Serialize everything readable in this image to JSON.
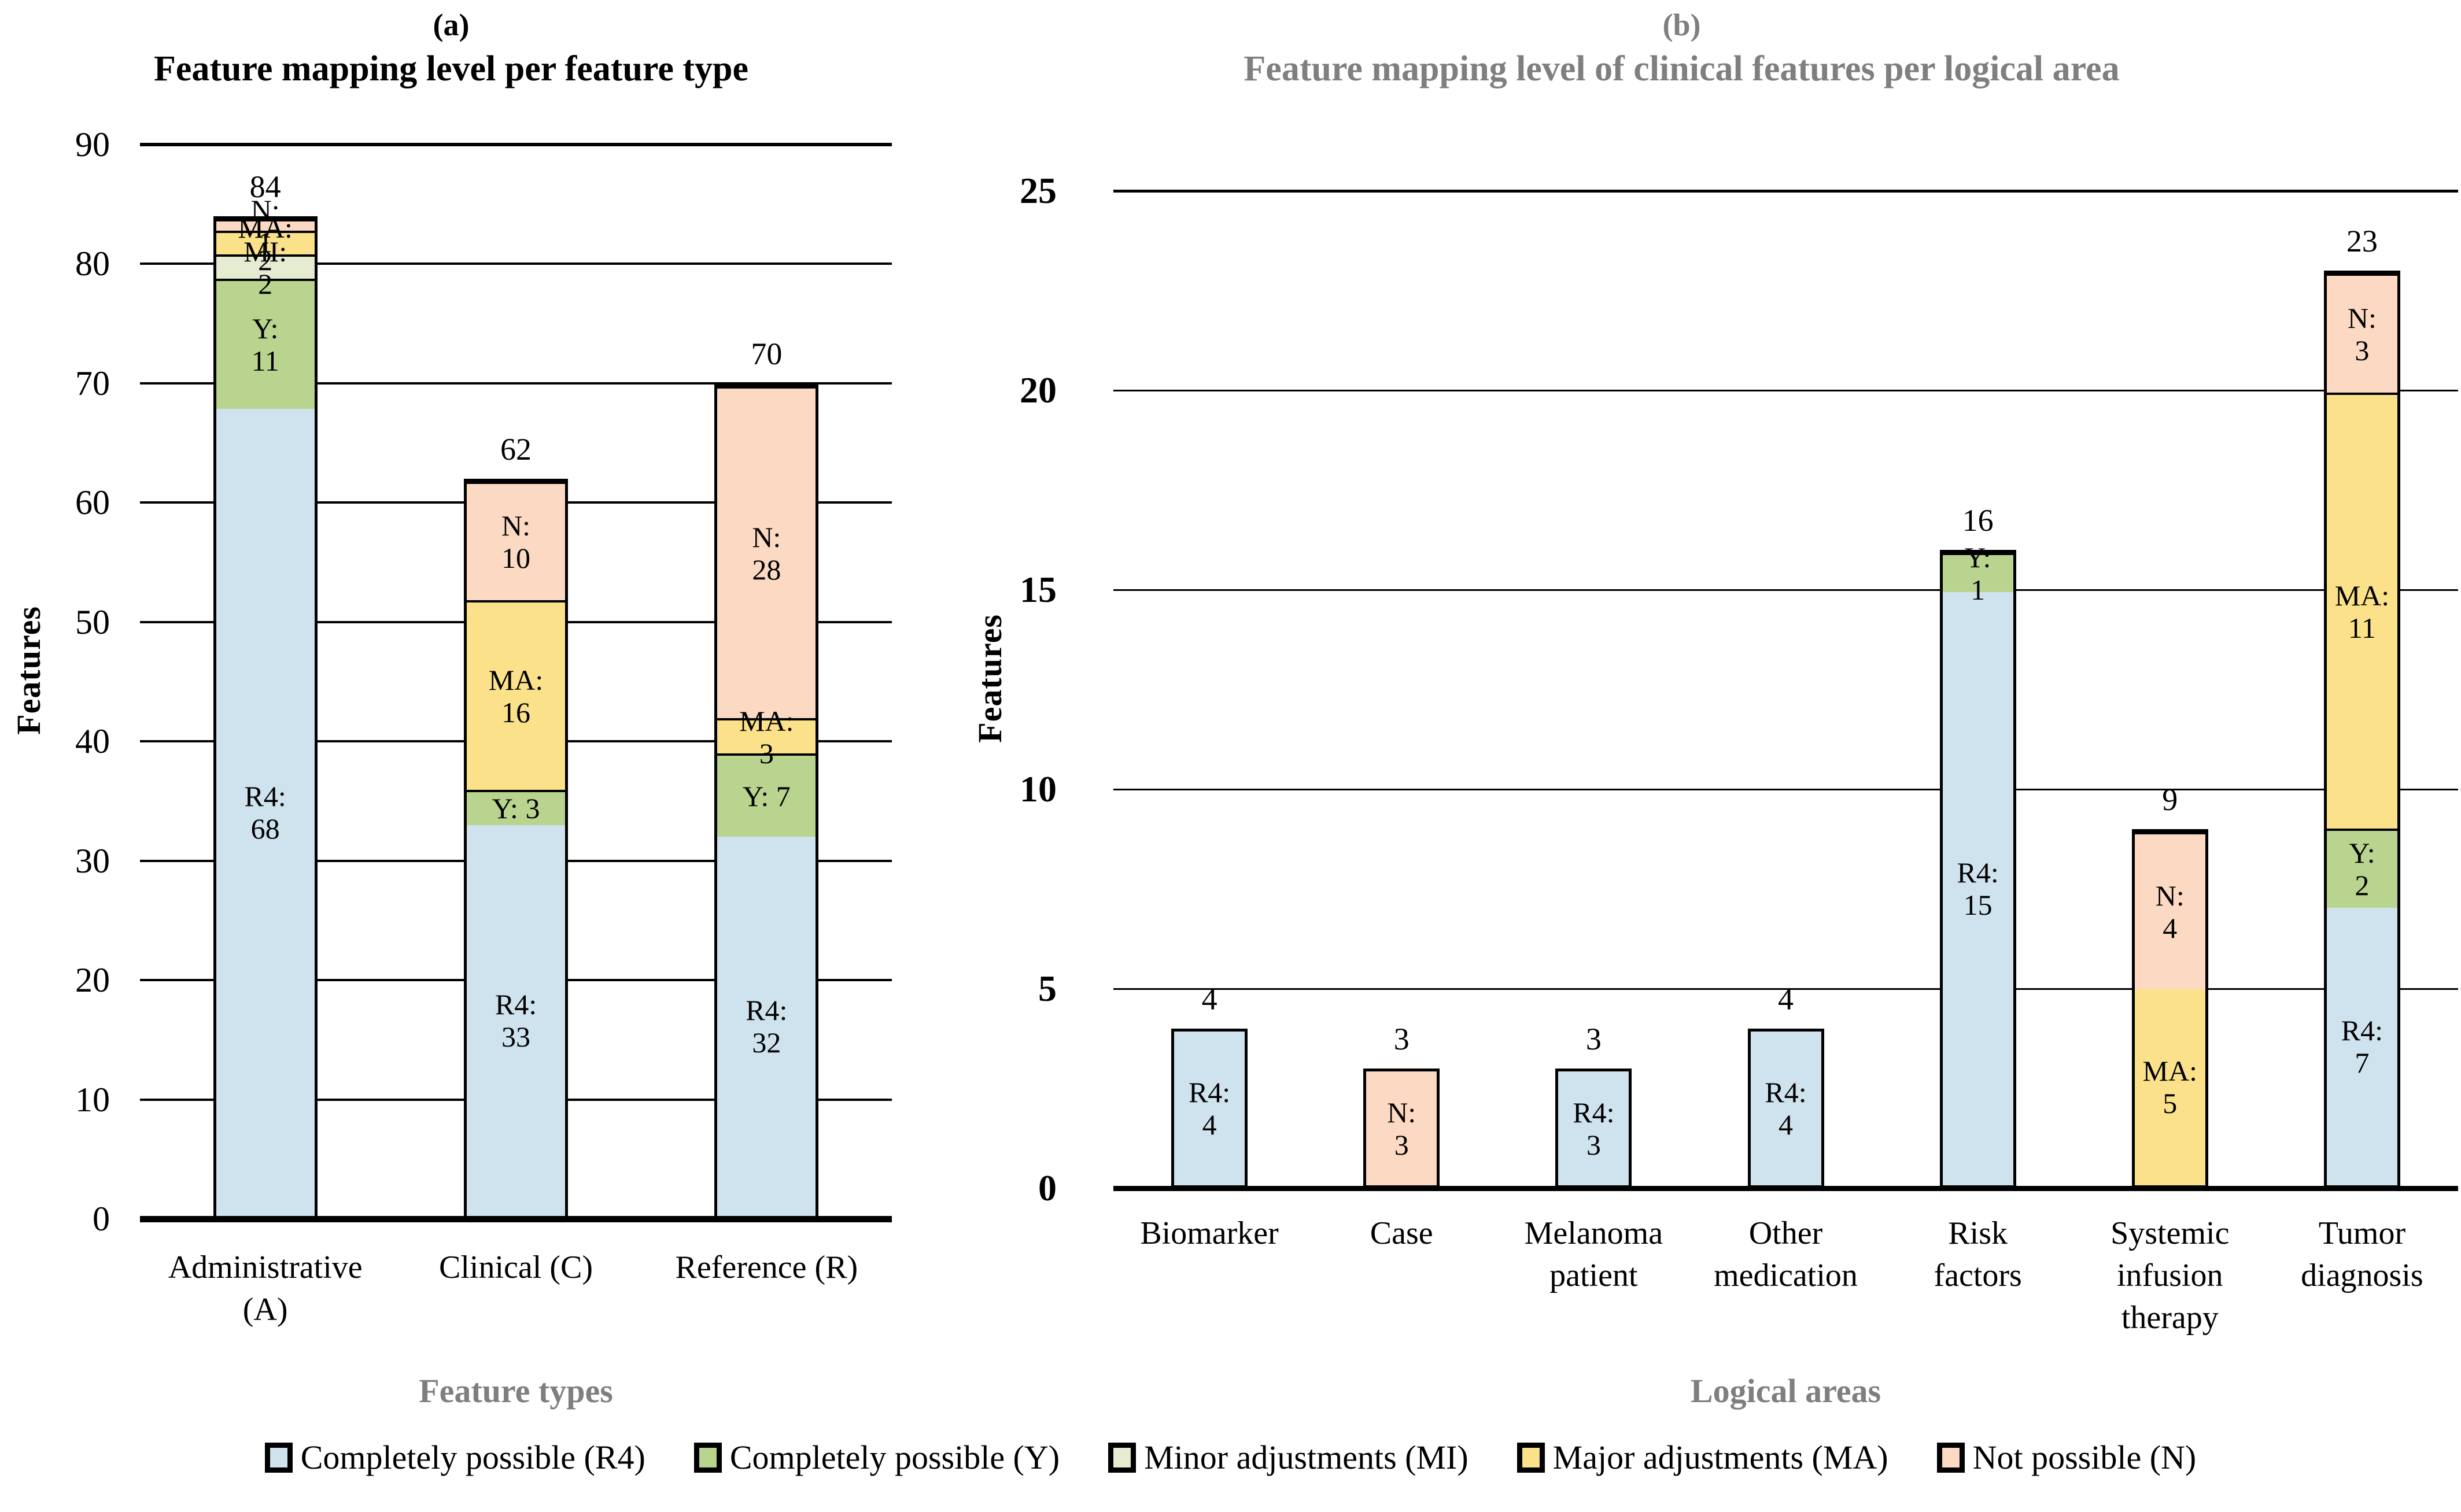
{
  "colors": {
    "outline": "#000000",
    "muted_title": "#7f7f7f",
    "background": "#ffffff"
  },
  "legend": {
    "items": [
      {
        "key": "R4",
        "label": "Completely possible (R4)",
        "color": "#cfe3ee"
      },
      {
        "key": "Y",
        "label": "Completely possible (Y)",
        "color": "#b9d48f"
      },
      {
        "key": "MI",
        "label": "Minor adjustments (MI)",
        "color": "#e6ecd2"
      },
      {
        "key": "MA",
        "label": "Major adjustments (MA)",
        "color": "#fbe28a"
      },
      {
        "key": "N",
        "label": "Not possible (N)",
        "color": "#fbd9c2"
      }
    ]
  },
  "chart_data": [
    {
      "type": "bar",
      "stacked": true,
      "panel": "(a)",
      "title": "Feature mapping level per feature type",
      "title_color": "#000000",
      "xlabel": "Feature types",
      "ylabel": "Features",
      "ylim": [
        0,
        90
      ],
      "yticks": [
        0,
        10,
        20,
        30,
        40,
        50,
        60,
        70,
        80,
        90
      ],
      "grid": "horizontal",
      "legend_position": "bottom-shared",
      "categories": [
        "Administrative\n(A)",
        "Clinical (C)",
        "Reference (R)"
      ],
      "totals": [
        84,
        62,
        70
      ],
      "bars": [
        {
          "category": "Administrative (A)",
          "total": 84,
          "segments": [
            {
              "key": "R4",
              "value": 68,
              "label": "R4:\n68"
            },
            {
              "key": "Y",
              "value": 11,
              "label": "Y: 11"
            },
            {
              "key": "MI",
              "value": 2,
              "label": "MI: 2"
            },
            {
              "key": "MA",
              "value": 2,
              "label": "MA: 2"
            },
            {
              "key": "N",
              "value": 1,
              "label": "N: 1"
            }
          ]
        },
        {
          "category": "Clinical (C)",
          "total": 62,
          "segments": [
            {
              "key": "R4",
              "value": 33,
              "label": "R4:\n33"
            },
            {
              "key": "Y",
              "value": 3,
              "label": "Y: 3"
            },
            {
              "key": "MA",
              "value": 16,
              "label": "MA:\n16"
            },
            {
              "key": "N",
              "value": 10,
              "label": "N: 10"
            }
          ]
        },
        {
          "category": "Reference (R)",
          "total": 70,
          "segments": [
            {
              "key": "R4",
              "value": 32,
              "label": "R4:\n32"
            },
            {
              "key": "Y",
              "value": 7,
              "label": "Y: 7"
            },
            {
              "key": "MA",
              "value": 3,
              "label": "MA: 3"
            },
            {
              "key": "N",
              "value": 28,
              "label": "N: 28"
            }
          ]
        }
      ]
    },
    {
      "type": "bar",
      "stacked": true,
      "panel": "(b)",
      "title": "Feature mapping level of clinical features per logical area",
      "title_color": "#7f7f7f",
      "xlabel": "Logical areas",
      "ylabel": "Features",
      "ylim": [
        0,
        25
      ],
      "yticks": [
        0,
        5,
        10,
        15,
        20,
        25
      ],
      "grid": "horizontal",
      "legend_position": "bottom-shared",
      "categories": [
        "Biomarker",
        "Case",
        "Melanoma\npatient",
        "Other\nmedication",
        "Risk\nfactors",
        "Systemic\ninfusion\ntherapy",
        "Tumor\ndiagnosis"
      ],
      "totals": [
        4,
        3,
        3,
        4,
        16,
        9,
        23
      ],
      "bars": [
        {
          "category": "Biomarker",
          "total": 4,
          "segments": [
            {
              "key": "R4",
              "value": 4,
              "label": "R4:\n4"
            }
          ]
        },
        {
          "category": "Case",
          "total": 3,
          "segments": [
            {
              "key": "N",
              "value": 3,
              "label": "N: 3"
            }
          ]
        },
        {
          "category": "Melanoma patient",
          "total": 3,
          "segments": [
            {
              "key": "R4",
              "value": 3,
              "label": "R4:\n3"
            }
          ]
        },
        {
          "category": "Other medication",
          "total": 4,
          "segments": [
            {
              "key": "R4",
              "value": 4,
              "label": "R4:\n4"
            }
          ]
        },
        {
          "category": "Risk factors",
          "total": 16,
          "segments": [
            {
              "key": "R4",
              "value": 15,
              "label": "R4:\n15"
            },
            {
              "key": "Y",
              "value": 1,
              "label": "Y: 1"
            }
          ]
        },
        {
          "category": "Systemic infusion therapy",
          "total": 9,
          "segments": [
            {
              "key": "MA",
              "value": 5,
              "label": "MA:\n5"
            },
            {
              "key": "N",
              "value": 4,
              "label": "N: 4"
            }
          ]
        },
        {
          "category": "Tumor diagnosis",
          "total": 23,
          "segments": [
            {
              "key": "R4",
              "value": 7,
              "label": "R4:\n7"
            },
            {
              "key": "Y",
              "value": 2,
              "label": "Y: 2"
            },
            {
              "key": "MA",
              "value": 11,
              "label": "MA:\n11"
            },
            {
              "key": "N",
              "value": 3,
              "label": "N: 3"
            }
          ]
        }
      ]
    }
  ]
}
